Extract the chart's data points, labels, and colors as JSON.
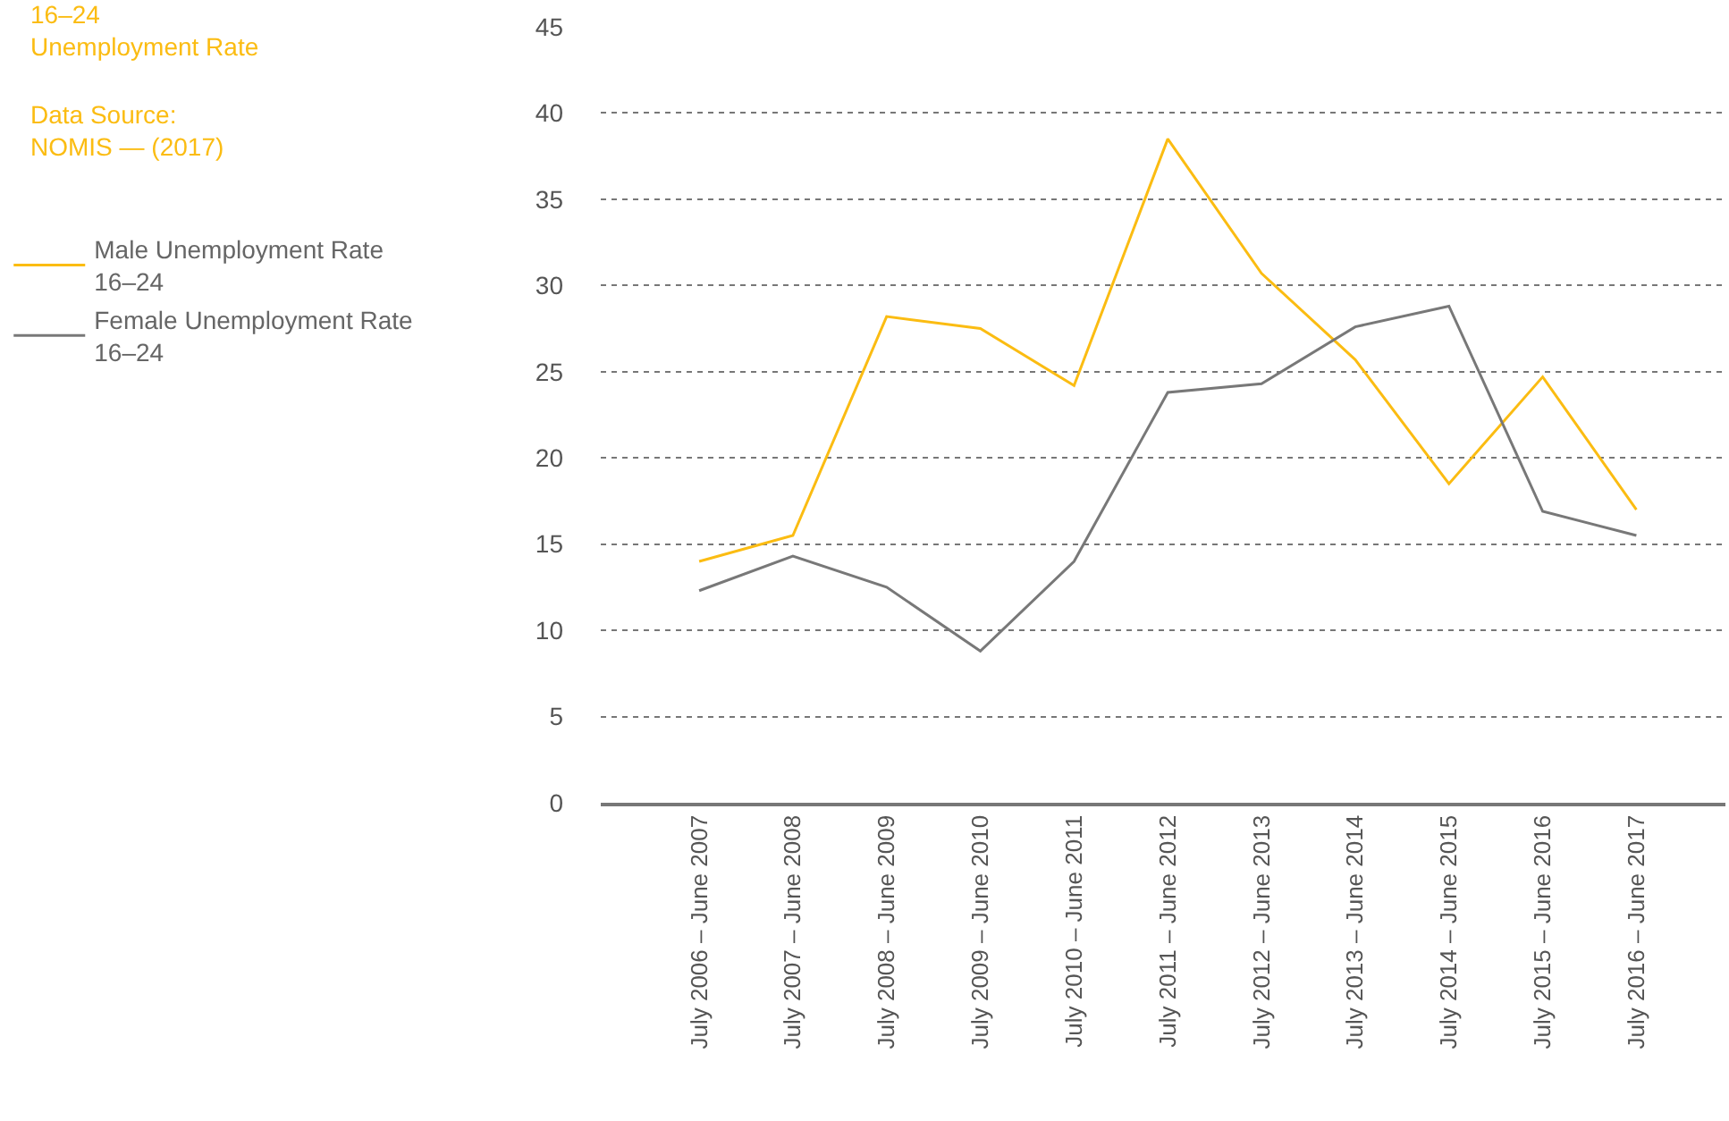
{
  "chart_data": {
    "type": "line",
    "title": "16–24 Unemployment Rate",
    "annotations": [
      "Data Source: NOMIS — (2017)"
    ],
    "categories": [
      "July 2006 – June 2007",
      "July 2007 – June 2008",
      "July 2008 – June 2009",
      "July 2009 – June 2010",
      "July 2010 – June 2011",
      "July 2011 – June 2012",
      "July 2012 – June 2013",
      "July 2013 – June 2014",
      "July 2014 – June 2015",
      "July 2015 – June 2016",
      "July 2016 – June 2017"
    ],
    "series": [
      {
        "name": "Male Unemployment Rate 16–24",
        "color": "#fbbc12",
        "values": [
          14.0,
          15.5,
          28.2,
          27.5,
          24.2,
          38.5,
          30.7,
          25.7,
          18.5,
          24.7,
          17.0
        ]
      },
      {
        "name": "Female Unemployment Rate 16–24",
        "color": "#787878",
        "values": [
          12.3,
          14.3,
          12.5,
          8.8,
          14.0,
          23.8,
          24.3,
          27.6,
          28.8,
          16.9,
          15.5
        ]
      }
    ],
    "ylim": [
      0,
      45
    ],
    "yticks": [
      0,
      5,
      10,
      15,
      20,
      25,
      30,
      35,
      40,
      45
    ],
    "grid": "y",
    "legend": "left",
    "marker": "none",
    "line_style": "solid"
  }
}
